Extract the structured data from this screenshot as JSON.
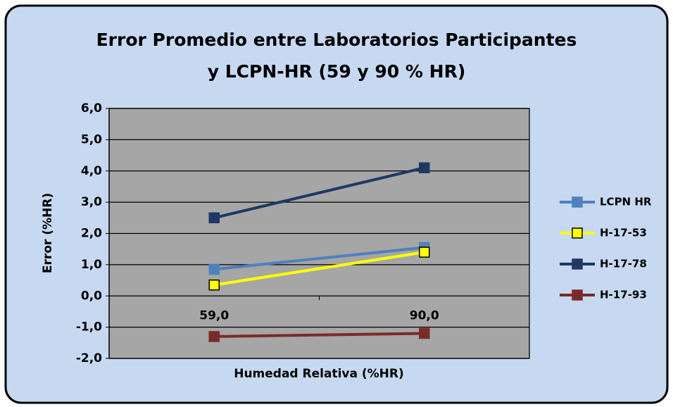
{
  "chart_data": {
    "type": "line",
    "title": [
      "Error Promedio entre Laboratorios Participantes",
      "y LCPN-HR  (59 y 90 % HR)"
    ],
    "xlabel": "Humedad Relativa (%HR)",
    "ylabel": "Error (%HR)",
    "categories": [
      "59,0",
      "90,0"
    ],
    "series": [
      {
        "name": "LCPN HR",
        "color": "#4f81bd",
        "marker_fill": "#4f81bd",
        "values": [
          0.85,
          1.55
        ]
      },
      {
        "name": "H-17-53",
        "color": "#ffff00",
        "marker_fill": "#ffff00",
        "values": [
          0.35,
          1.4
        ]
      },
      {
        "name": "H-17-78",
        "color": "#1f3864",
        "marker_fill": "#1f3864",
        "values": [
          2.5,
          4.1
        ]
      },
      {
        "name": "H-17-93",
        "color": "#7b2a2a",
        "marker_fill": "#7b2a2a",
        "values": [
          -1.3,
          -1.2
        ]
      }
    ],
    "ylim": [
      -2,
      6
    ],
    "yticks": [
      {
        "value": -2,
        "label": "-2,0"
      },
      {
        "value": -1,
        "label": "-1,0"
      },
      {
        "value": 0,
        "label": "0,0"
      },
      {
        "value": 1,
        "label": "1,0"
      },
      {
        "value": 2,
        "label": "2,0"
      },
      {
        "value": 3,
        "label": "3,0"
      },
      {
        "value": 4,
        "label": "4,0"
      },
      {
        "value": 5,
        "label": "5,0"
      },
      {
        "value": 6,
        "label": "6,0"
      }
    ],
    "grid": true,
    "legend": "right"
  }
}
